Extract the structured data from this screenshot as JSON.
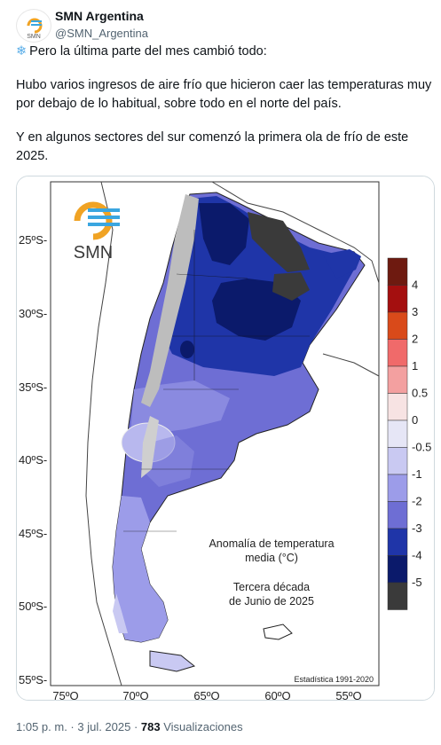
{
  "account": {
    "name": "SMN Argentina",
    "handle": "@SMN_Argentina",
    "avatar_text": "SMN"
  },
  "tweet": {
    "icon": "snowflake-icon",
    "line1": "Pero la última parte del mes cambió todo:",
    "line2": "Hubo varios ingresos de aire frío que hicieron caer las temperaturas muy por debajo de lo habitual, sobre todo en el norte del país.",
    "line3": "Y en algunos sectores del sur comenzó la primera ola de frío de este 2025."
  },
  "map": {
    "logo_text": "SMN",
    "title_line1": "Anomalía de temperatura",
    "title_line2": "media (°C)",
    "period_line1": "Tercera década",
    "period_line2": "de Junio de 2025",
    "stats": "Estadística 1991-2020",
    "lat_labels": [
      "25ºS-",
      "30ºS-",
      "35ºS-",
      "40ºS-",
      "45ºS-",
      "50ºS-",
      "55ºS-"
    ],
    "lon_labels": [
      "75ºO",
      "70ºO",
      "65ºO",
      "60ºO",
      "55ºO"
    ],
    "legend": [
      {
        "label": "4",
        "color": "#6e1a10"
      },
      {
        "label": "3",
        "color": "#a40f0f"
      },
      {
        "label": "2",
        "color": "#d94a1a"
      },
      {
        "label": "1",
        "color": "#f06a6a"
      },
      {
        "label": "0.5",
        "color": "#f3a0a0"
      },
      {
        "label": "0",
        "color": "#f7e3e3"
      },
      {
        "label": "-0.5",
        "color": "#e6e6f6"
      },
      {
        "label": "-1",
        "color": "#c9c9f2"
      },
      {
        "label": "-2",
        "color": "#9c9ce9"
      },
      {
        "label": "-3",
        "color": "#6e6ed4"
      },
      {
        "label": "-4",
        "color": "#1f35a8"
      },
      {
        "label": "-5",
        "color": "#0b1a6b"
      },
      {
        "label": "",
        "color": "#3a3a3a"
      }
    ]
  },
  "footer": {
    "time": "1:05 p. m. · 3 jul. 2025 · ",
    "views": "783",
    "views_label": " Visualizaciones"
  }
}
